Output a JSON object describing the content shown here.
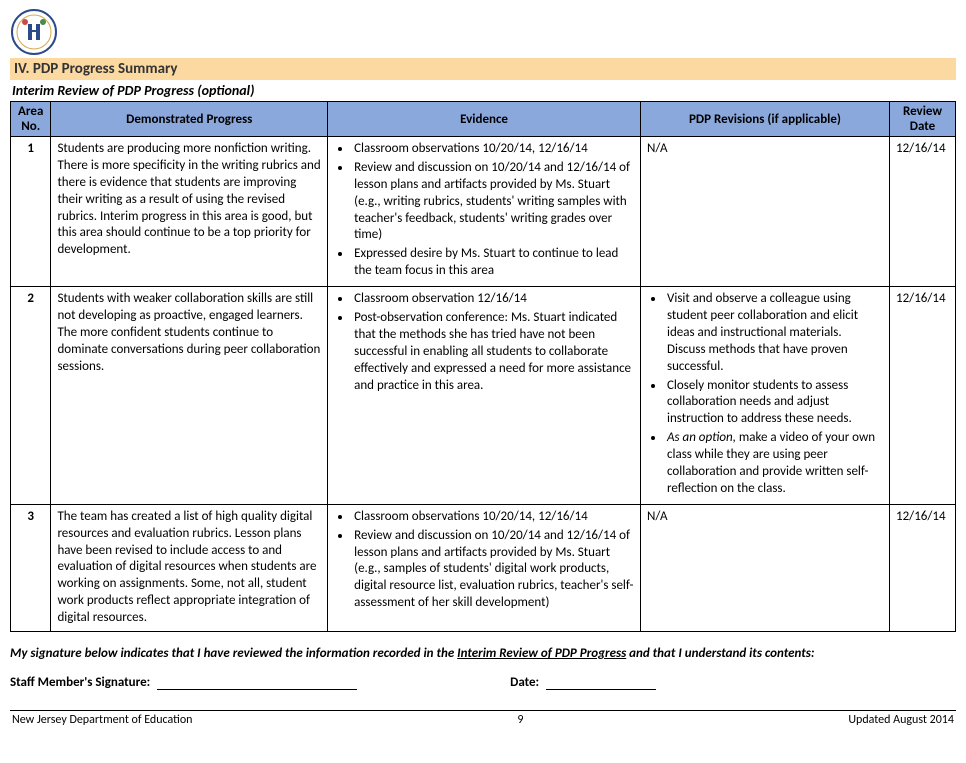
{
  "section_title": "IV. PDP Progress Summary",
  "subtitle": "Interim Review of PDP Progress (optional)",
  "headers": {
    "area": "Area No.",
    "progress": "Demonstrated Progress",
    "evidence": "Evidence",
    "revisions": "PDP Revisions (if applicable)",
    "date": "Review Date"
  },
  "rows": [
    {
      "area": "1",
      "progress": "Students are producing more nonfiction writing. There is more specificity in the writing rubrics and there is evidence that students are improving their writing as a result of using the revised rubrics.  Interim progress in this area is good, but this area should continue to be a top priority for development.",
      "evidence": [
        "Classroom observations 10/20/14, 12/16/14",
        "Review and discussion on 10/20/14 and 12/16/14 of lesson plans and artifacts provided by Ms. Stuart (e.g., writing rubrics, students' writing samples with teacher's feedback, students' writing grades over time)",
        "Expressed desire by Ms. Stuart to continue to lead the team focus in this area"
      ],
      "revisions_text": "N/A",
      "date": "12/16/14"
    },
    {
      "area": "2",
      "progress": "Students with weaker collaboration skills are still not developing as proactive, engaged learners. The more confident students continue to dominate conversations during peer collaboration sessions.",
      "evidence": [
        "Classroom observation 12/16/14",
        "Post-observation conference: Ms. Stuart indicated that the methods she has tried have not been successful in enabling all students to collaborate effectively and expressed a need for more assistance and practice in this area."
      ],
      "revisions_list": [
        "Visit and observe a colleague using student peer collaboration and elicit ideas and instructional materials. Discuss methods that have proven successful.",
        "Closely monitor students to assess collaboration needs and adjust instruction to address these needs."
      ],
      "revisions_option_prefix": "As an option,",
      "revisions_option_rest": " make a video of your own class while they are using peer collaboration and provide written self-reflection on the class.",
      "date": "12/16/14"
    },
    {
      "area": "3",
      "progress": "The team has created a list of high quality digital resources and evaluation rubrics. Lesson plans have been revised to include access to and evaluation of digital resources when students are working on assignments. Some, not all, student work products reflect appropriate integration of digital resources.",
      "evidence": [
        "Classroom observations 10/20/14, 12/16/14",
        "Review and discussion on 10/20/14 and 12/16/14 of lesson plans and artifacts provided by Ms. Stuart (e.g., samples of students' digital work products, digital resource list, evaluation rubrics, teacher's self-assessment of her skill development)"
      ],
      "revisions_text": "N/A",
      "date": "12/16/14"
    }
  ],
  "signature_statement_pre": "My signature below indicates that I have reviewed the information recorded in the ",
  "signature_statement_underline": "Interim Review of PDP Progress",
  "signature_statement_post": " and that I understand its contents:",
  "sig_member_label": "Staff Member's Signature:",
  "sig_date_label": "Date:",
  "footer_left": "New Jersey Department of Education",
  "footer_center": "9",
  "footer_right": "Updated August 2014"
}
